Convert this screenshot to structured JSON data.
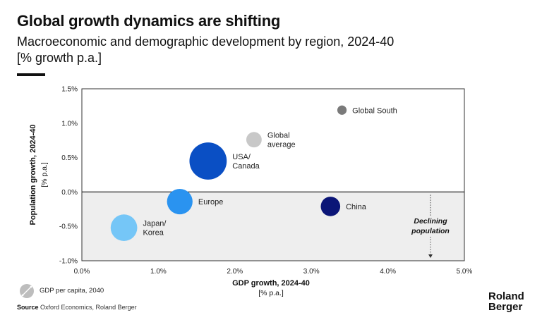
{
  "header": {
    "title": "Global growth dynamics are shifting",
    "subtitle": "Macroeconomic and demographic development by region, 2024-40",
    "unit": "[% growth p.a.]"
  },
  "chart_data": {
    "type": "scatter",
    "title": "Global growth dynamics are shifting",
    "xlabel": "GDP growth, 2024-40",
    "xlabel_unit": "[% p.a.]",
    "ylabel": "Population growth, 2024-40",
    "ylabel_unit": "[% p.a.]",
    "xlim": [
      0,
      5
    ],
    "ylim": [
      -1,
      1.5
    ],
    "x_ticks": [
      "0.0%",
      "1.0%",
      "2.0%",
      "3.0%",
      "4.0%",
      "5.0%"
    ],
    "y_ticks": [
      "1.5%",
      "1.0%",
      "0.5%",
      "0.0%",
      "-0.5%",
      "-1.0%"
    ],
    "size_legend": "GDP per capita, 2040",
    "annotation": [
      "Declining",
      "population"
    ],
    "points": [
      {
        "name": "Global South",
        "label_lines": [
          "Global South"
        ],
        "x": 3.4,
        "y": 1.19,
        "gdp_per_capita_size": 1,
        "color": "#7a7a7a"
      },
      {
        "name": "Global average",
        "label_lines": [
          "Global",
          "average"
        ],
        "x": 2.25,
        "y": 0.76,
        "gdp_per_capita_size": 2.2,
        "color": "#c8c8c8"
      },
      {
        "name": "USA/Canada",
        "label_lines": [
          "USA/",
          "Canada"
        ],
        "x": 1.65,
        "y": 0.45,
        "gdp_per_capita_size": 6.5,
        "color": "#0a4fc4"
      },
      {
        "name": "Europe",
        "label_lines": [
          "Europe"
        ],
        "x": 1.28,
        "y": -0.14,
        "gdp_per_capita_size": 4.2,
        "color": "#2a93f0"
      },
      {
        "name": "Japan/Korea",
        "label_lines": [
          "Japan/",
          "Korea"
        ],
        "x": 0.55,
        "y": -0.52,
        "gdp_per_capita_size": 4.4,
        "color": "#75c6f7"
      },
      {
        "name": "China",
        "label_lines": [
          "China"
        ],
        "x": 3.25,
        "y": -0.21,
        "gdp_per_capita_size": 3,
        "color": "#0b1577"
      }
    ]
  },
  "footer": {
    "source_label": "Source",
    "source_text": "Oxford Economics, Roland Berger",
    "brand_line1": "Roland",
    "brand_line2": "Berger"
  }
}
